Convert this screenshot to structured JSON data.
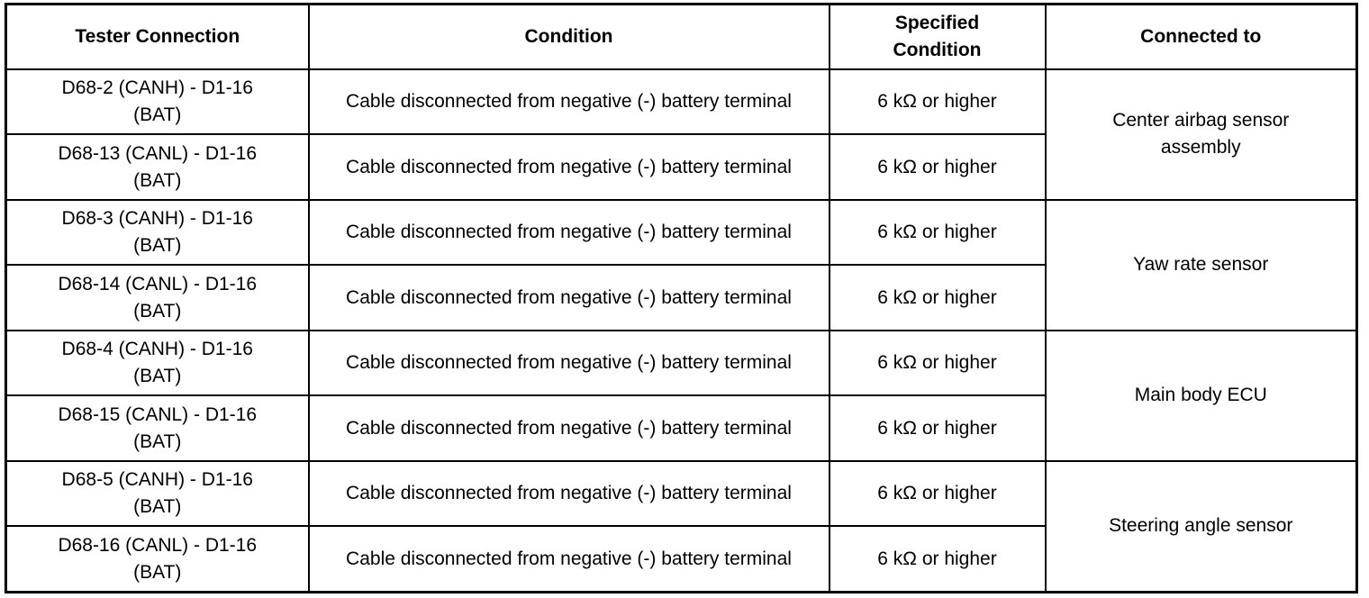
{
  "headers": [
    "Tester Connection",
    "Condition",
    "Specified Condition",
    "Connected to"
  ],
  "rows": [
    {
      "tester": "D68-2 (CANH) - D1-16 (BAT)",
      "condition": "Cable disconnected from negative (-) battery terminal",
      "spec": "6 kΩ or higher"
    },
    {
      "tester": "D68-13 (CANL) - D1-16 (BAT)",
      "condition": "Cable disconnected from negative (-) battery terminal",
      "spec": "6 kΩ or higher"
    },
    {
      "tester": "D68-3 (CANH) - D1-16 (BAT)",
      "condition": "Cable disconnected from negative (-) battery terminal",
      "spec": "6 kΩ or higher"
    },
    {
      "tester": "D68-14 (CANL) - D1-16 (BAT)",
      "condition": "Cable disconnected from negative (-) battery terminal",
      "spec": "6 kΩ or higher"
    },
    {
      "tester": "D68-4 (CANH) - D1-16 (BAT)",
      "condition": "Cable disconnected from negative (-) battery terminal",
      "spec": "6 kΩ or higher"
    },
    {
      "tester": "D68-15 (CANL) - D1-16 (BAT)",
      "condition": "Cable disconnected from negative (-) battery terminal",
      "spec": "6 kΩ or higher"
    },
    {
      "tester": "D68-5 (CANH) - D1-16 (BAT)",
      "condition": "Cable disconnected from negative (-) battery terminal",
      "spec": "6 kΩ or higher"
    },
    {
      "tester": "D68-16 (CANL) - D1-16 (BAT)",
      "condition": "Cable disconnected from negative (-) battery terminal",
      "spec": "6 kΩ or higher"
    }
  ],
  "connected_to": [
    "Center airbag sensor assembly",
    "Yaw rate sensor",
    "Main body ECU",
    "Steering angle sensor"
  ]
}
